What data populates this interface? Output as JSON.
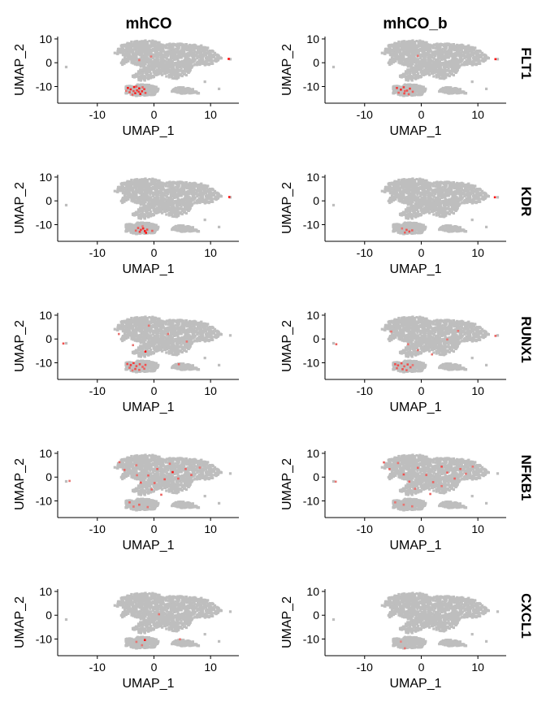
{
  "chart_data": {
    "type": "scatter",
    "layout": "faceted grid, 5 gene rows x 2 sample columns",
    "columns": [
      "mhCO",
      "mhCO_b"
    ],
    "rows": [
      "FLT1",
      "KDR",
      "RUNX1",
      "NFKB1",
      "CXCL1"
    ],
    "xlabel": "UMAP_1",
    "ylabel": "UMAP_2",
    "xlim": [
      -17,
      15
    ],
    "ylim": [
      -17,
      11
    ],
    "xticks": [
      -10,
      0,
      10
    ],
    "yticks": [
      10,
      0,
      -10
    ],
    "background_color": "#bebebe",
    "low_color": "#d9c2bd",
    "high_color": "#ff0000",
    "grid": false,
    "legend": "none",
    "background_cells": {
      "main_cluster": [
        [
          -6,
          7
        ],
        [
          -4,
          9
        ],
        [
          0,
          9.5
        ],
        [
          2,
          8
        ],
        [
          6,
          8
        ],
        [
          9,
          7
        ],
        [
          11,
          4
        ],
        [
          12,
          2
        ],
        [
          10,
          -1
        ],
        [
          7,
          -1
        ],
        [
          6,
          -5
        ],
        [
          4,
          -7
        ],
        [
          1,
          -5
        ],
        [
          -2,
          -8
        ],
        [
          -4,
          -6
        ],
        [
          -2,
          -2
        ],
        [
          -4,
          0
        ],
        [
          -6,
          -1
        ],
        [
          -5,
          3
        ],
        [
          -7,
          4
        ]
      ],
      "lower_cluster": [
        [
          -5,
          -10
        ],
        [
          -3,
          -9
        ],
        [
          0,
          -9.5
        ],
        [
          1,
          -11
        ],
        [
          0,
          -13.5
        ],
        [
          -3,
          -14
        ],
        [
          -5,
          -13
        ]
      ],
      "right_tail": [
        [
          4,
          -10
        ],
        [
          7,
          -11
        ],
        [
          8,
          -13
        ],
        [
          5,
          -13
        ],
        [
          3,
          -12
        ]
      ],
      "outliers": [
        [
          -15.5,
          -1.8
        ],
        [
          13.5,
          1.5
        ],
        [
          9,
          -8
        ],
        [
          11.5,
          -11
        ],
        [
          -1,
          -6
        ]
      ]
    },
    "expression": {
      "mhCO": {
        "FLT1": [
          [
            -4.6,
            -10.6,
            0.9
          ],
          [
            -4.1,
            -11.2,
            0.8
          ],
          [
            -3.5,
            -10.2,
            0.9
          ],
          [
            -3.0,
            -11.6,
            0.7
          ],
          [
            -2.6,
            -10.8,
            0.9
          ],
          [
            -2.1,
            -12.0,
            0.8
          ],
          [
            -1.7,
            -11.1,
            0.7
          ],
          [
            -4.3,
            -12.4,
            0.6
          ],
          [
            -3.3,
            -12.8,
            0.8
          ],
          [
            -2.4,
            -13.1,
            0.9
          ],
          [
            -3.8,
            -13.4,
            0.5
          ],
          [
            -1.5,
            -12.7,
            0.6
          ],
          [
            -3.1,
            -10.0,
            0.5
          ],
          [
            -2.7,
            -12.2,
            0.7
          ],
          [
            -4.9,
            -11.8,
            0.4
          ],
          [
            -0.5,
            2.6,
            0.4
          ],
          [
            -2.6,
            1.1,
            0.4
          ],
          [
            13.2,
            1.6,
            1.0
          ],
          [
            -3.6,
            -11.9,
            0.6
          ],
          [
            -2.0,
            -10.3,
            0.5
          ]
        ],
        "KDR": [
          [
            -2.8,
            -11.4,
            0.6
          ],
          [
            -2.3,
            -12.2,
            0.7
          ],
          [
            -1.9,
            -11.6,
            0.8
          ],
          [
            -1.6,
            -12.7,
            0.9
          ],
          [
            -2.5,
            -13.0,
            0.7
          ],
          [
            -1.4,
            -13.4,
            0.9
          ],
          [
            -3.2,
            -12.5,
            0.5
          ],
          [
            -2.0,
            -10.7,
            0.4
          ],
          [
            -1.2,
            -12.1,
            0.6
          ],
          [
            13.3,
            1.6,
            0.9
          ],
          [
            -0.3,
            -12.6,
            0.5
          ]
        ],
        "RUNX1": [
          [
            -4.7,
            -10.5,
            0.6
          ],
          [
            -4.1,
            -11.0,
            0.7
          ],
          [
            -3.6,
            -10.1,
            0.7
          ],
          [
            -3.1,
            -11.4,
            0.6
          ],
          [
            -2.5,
            -10.6,
            0.6
          ],
          [
            -2.0,
            -11.7,
            0.5
          ],
          [
            -1.5,
            -10.9,
            0.6
          ],
          [
            -4.3,
            -12.1,
            0.5
          ],
          [
            -3.3,
            -12.6,
            0.6
          ],
          [
            -2.6,
            -13.0,
            0.5
          ],
          [
            -1.7,
            -12.5,
            0.5
          ],
          [
            -3.8,
            -13.2,
            0.4
          ],
          [
            -1.5,
            -5.3,
            0.9
          ],
          [
            -3.7,
            -2.6,
            0.4
          ],
          [
            -6.2,
            2.1,
            0.4
          ],
          [
            2.5,
            2.1,
            0.4
          ],
          [
            5.8,
            -1.1,
            0.4
          ],
          [
            -16.0,
            -1.9,
            0.6
          ],
          [
            4.4,
            -10.6,
            0.5
          ],
          [
            -0.9,
            5.6,
            0.4
          ]
        ],
        "NFKB1": [
          [
            -6.1,
            6.3,
            0.5
          ],
          [
            -5.2,
            3.0,
            0.5
          ],
          [
            -3.1,
            5.0,
            0.4
          ],
          [
            -2.3,
            -2.3,
            0.6
          ],
          [
            -1.0,
            0.7,
            0.5
          ],
          [
            0.6,
            3.4,
            0.5
          ],
          [
            1.9,
            -0.9,
            0.6
          ],
          [
            2.8,
            5.6,
            0.4
          ],
          [
            3.3,
            2.1,
            0.9
          ],
          [
            4.3,
            -0.6,
            0.5
          ],
          [
            5.6,
            3.4,
            0.5
          ],
          [
            6.6,
            0.9,
            0.5
          ],
          [
            8.1,
            4.0,
            0.4
          ],
          [
            -0.4,
            -5.2,
            0.5
          ],
          [
            -4.3,
            -10.6,
            0.5
          ],
          [
            -2.6,
            -11.6,
            0.5
          ],
          [
            -1.1,
            -12.6,
            0.4
          ],
          [
            -3.6,
            -12.4,
            0.4
          ],
          [
            1.3,
            -7.4,
            0.5
          ],
          [
            -14.9,
            -1.6,
            0.4
          ],
          [
            0.1,
            -2.5,
            0.5
          ],
          [
            -3.0,
            0.8,
            0.4
          ]
        ],
        "CXCL1": [
          [
            -1.6,
            -10.4,
            0.9
          ],
          [
            -3.1,
            -11.2,
            0.4
          ],
          [
            4.6,
            -10.1,
            0.4
          ],
          [
            0.9,
            0.4,
            0.4
          ],
          [
            -2.1,
            -12.6,
            0.4
          ]
        ]
      },
      "mhCO_b": {
        "FLT1": [
          [
            -4.3,
            -10.6,
            0.7
          ],
          [
            -3.6,
            -11.3,
            0.8
          ],
          [
            -3.1,
            -10.3,
            0.7
          ],
          [
            -2.5,
            -11.7,
            0.6
          ],
          [
            -2.0,
            -10.9,
            0.7
          ],
          [
            -4.0,
            -12.6,
            0.5
          ],
          [
            -3.0,
            -12.9,
            0.6
          ],
          [
            -2.2,
            -13.2,
            0.5
          ],
          [
            -1.5,
            -12.2,
            0.5
          ],
          [
            -0.6,
            2.9,
            0.4
          ],
          [
            13.1,
            1.5,
            0.9
          ],
          [
            -2.9,
            -11.9,
            0.5
          ]
        ],
        "KDR": [
          [
            -2.6,
            -12.2,
            0.6
          ],
          [
            -2.1,
            -12.9,
            0.6
          ],
          [
            -1.6,
            -12.4,
            0.5
          ],
          [
            -2.9,
            -13.3,
            0.5
          ],
          [
            13.0,
            1.5,
            0.9
          ],
          [
            -3.4,
            -11.6,
            0.4
          ]
        ],
        "RUNX1": [
          [
            -4.6,
            -10.6,
            0.6
          ],
          [
            -4.1,
            -11.1,
            0.6
          ],
          [
            -3.5,
            -10.2,
            0.6
          ],
          [
            -3.0,
            -11.5,
            0.5
          ],
          [
            -2.4,
            -10.7,
            0.6
          ],
          [
            -1.9,
            -11.9,
            0.5
          ],
          [
            -4.3,
            -12.3,
            0.5
          ],
          [
            -3.3,
            -12.7,
            0.6
          ],
          [
            -2.6,
            -13.1,
            0.5
          ],
          [
            -1.5,
            -11.0,
            0.4
          ],
          [
            -5.3,
            3.1,
            0.4
          ],
          [
            -2.3,
            -2.2,
            0.4
          ],
          [
            -0.6,
            -4.7,
            0.4
          ],
          [
            4.6,
            -0.2,
            0.4
          ],
          [
            6.5,
            3.4,
            0.4
          ],
          [
            -15.0,
            -2.2,
            0.5
          ],
          [
            13.1,
            1.3,
            0.5
          ],
          [
            1.9,
            -6.5,
            0.4
          ]
        ],
        "NFKB1": [
          [
            -6.6,
            6.2,
            0.5
          ],
          [
            -5.6,
            3.4,
            0.5
          ],
          [
            -4.1,
            5.9,
            0.4
          ],
          [
            -3.1,
            1.1,
            0.6
          ],
          [
            -2.1,
            -1.9,
            0.5
          ],
          [
            -0.6,
            3.9,
            0.5
          ],
          [
            0.9,
            0.9,
            0.5
          ],
          [
            2.1,
            -2.1,
            0.5
          ],
          [
            3.6,
            4.4,
            0.6
          ],
          [
            4.6,
            1.9,
            0.5
          ],
          [
            5.9,
            -0.6,
            0.5
          ],
          [
            6.9,
            3.4,
            0.5
          ],
          [
            7.9,
            1.4,
            0.4
          ],
          [
            9.1,
            4.4,
            0.4
          ],
          [
            -4.6,
            -10.6,
            0.4
          ],
          [
            -3.1,
            -11.6,
            0.4
          ],
          [
            -1.6,
            -12.3,
            0.4
          ],
          [
            -15.1,
            -1.9,
            0.4
          ],
          [
            1.6,
            -7.1,
            0.5
          ],
          [
            3.6,
            -3.8,
            0.4
          ],
          [
            -1.1,
            -4.9,
            0.4
          ]
        ],
        "CXCL1": [
          [
            -2.9,
            -13.9,
            0.4
          ],
          [
            -3.6,
            -11.1,
            0.3
          ]
        ]
      }
    }
  }
}
